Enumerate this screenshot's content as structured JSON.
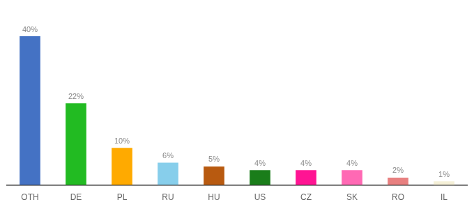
{
  "chart_data": {
    "type": "bar",
    "categories": [
      "OTH",
      "DE",
      "PL",
      "RU",
      "HU",
      "US",
      "CZ",
      "SK",
      "RO",
      "IL"
    ],
    "values": [
      40,
      22,
      10,
      6,
      5,
      4,
      4,
      4,
      2,
      1
    ],
    "value_labels": [
      "40%",
      "22%",
      "10%",
      "6%",
      "5%",
      "4%",
      "4%",
      "4%",
      "2%",
      "1%"
    ],
    "colors": [
      "#4472c4",
      "#22bb22",
      "#ffaa00",
      "#87ceeb",
      "#b85a10",
      "#1a7d1a",
      "#ff1493",
      "#ff69b4",
      "#e88080",
      "#f5f0d8"
    ],
    "ylim": [
      0,
      46
    ],
    "grid": false,
    "data_labels": true,
    "tick_labels": "x"
  }
}
